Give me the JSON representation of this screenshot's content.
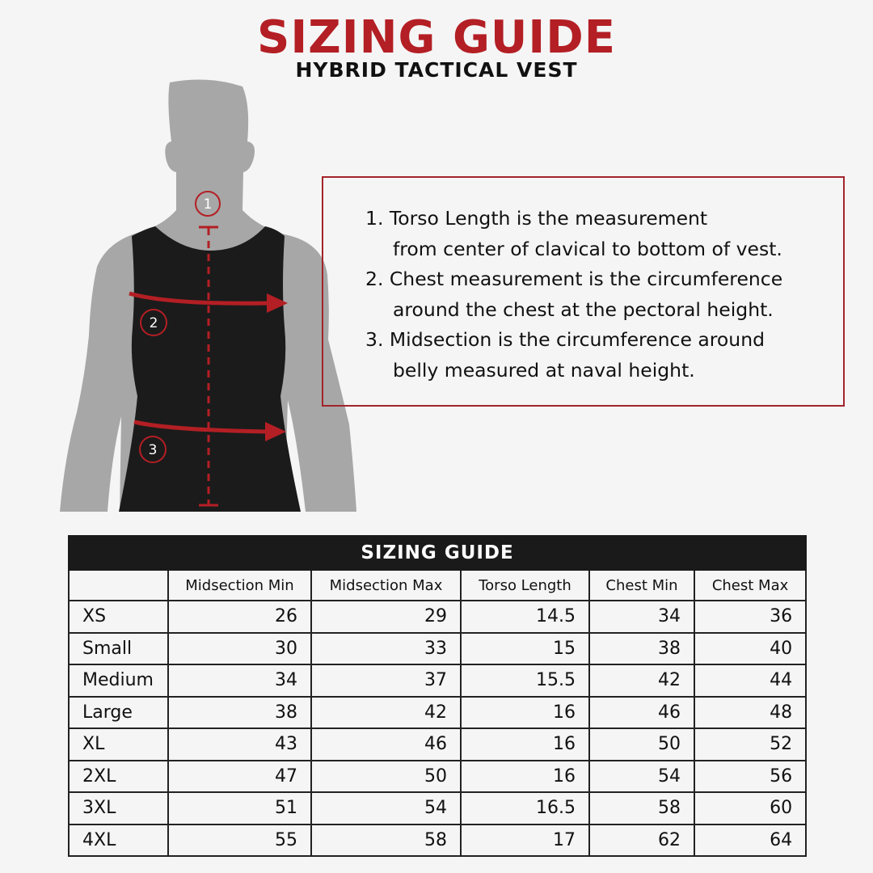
{
  "header": {
    "title": "SIZING GUIDE",
    "subtitle": "HYBRID TACTICAL VEST"
  },
  "figure": {
    "markers": [
      "1",
      "2",
      "3"
    ],
    "colors": {
      "body": "#a7a7a7",
      "vest": "#1b1b1b",
      "accent": "#b31f24"
    }
  },
  "info": {
    "items": [
      {
        "line1": "1. Torso Length is the measurement",
        "line2": "from center of clavical to bottom of vest."
      },
      {
        "line1": "2. Chest measurement is the circumference",
        "line2": "around the chest at the pectoral height."
      },
      {
        "line1": "3. Midsection is the circumference around",
        "line2": "belly measured at naval height."
      }
    ]
  },
  "table": {
    "title": "SIZING GUIDE",
    "headers": [
      "",
      "Midsection Min",
      "Midsection Max",
      "Torso Length",
      "Chest Min",
      "Chest Max"
    ],
    "rows": [
      [
        "XS",
        "26",
        "29",
        "14.5",
        "34",
        "36"
      ],
      [
        "Small",
        "30",
        "33",
        "15",
        "38",
        "40"
      ],
      [
        "Medium",
        "34",
        "37",
        "15.5",
        "42",
        "44"
      ],
      [
        "Large",
        "38",
        "42",
        "16",
        "46",
        "48"
      ],
      [
        "XL",
        "43",
        "46",
        "16",
        "50",
        "52"
      ],
      [
        "2XL",
        "47",
        "50",
        "16",
        "54",
        "56"
      ],
      [
        "3XL",
        "51",
        "54",
        "16.5",
        "58",
        "60"
      ],
      [
        "4XL",
        "55",
        "58",
        "17",
        "62",
        "64"
      ]
    ]
  }
}
